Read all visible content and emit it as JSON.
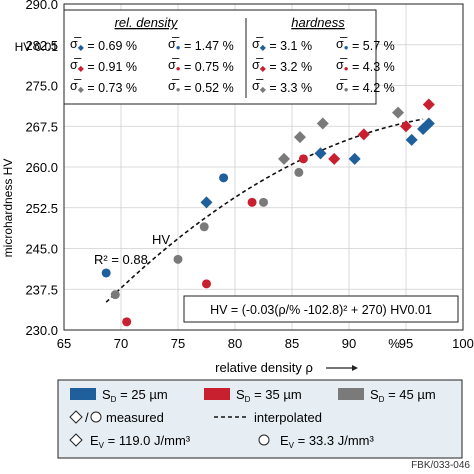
{
  "chart_data": {
    "type": "scatter",
    "xlabel": "relative density ρ",
    "ylabel_visible": "microhardness HV",
    "unit_percent": "%",
    "xlim": [
      65,
      100
    ],
    "ylim": [
      230.0,
      290.0
    ],
    "xticks": [
      "65",
      "70",
      "75",
      "80",
      "85",
      "90",
      "95",
      "100"
    ],
    "yticks": [
      "230.0",
      "237.5",
      "245.0",
      "252.5",
      "260.0",
      "267.5",
      "275.0",
      "282.5",
      "290.0"
    ],
    "hv_tick_label": "HV 0.01",
    "grid": true,
    "colors": {
      "blue": "#1f5f9b",
      "red": "#c8202f",
      "gray": "#7a7a7a"
    },
    "series": [
      {
        "name": "S_D = 25 µm, E_V = 119.0 J/mm³",
        "color": "blue",
        "marker": "diamond",
        "points": [
          [
            77.5,
            253.5
          ],
          [
            87.5,
            262.5
          ],
          [
            90.5,
            261.5
          ],
          [
            95.5,
            265.0
          ],
          [
            96.5,
            267.0
          ],
          [
            97.0,
            268.0
          ]
        ]
      },
      {
        "name": "S_D = 25 µm, E_V = 33.3 J/mm³",
        "color": "blue",
        "marker": "circle",
        "points": [
          [
            68.7,
            240.5
          ],
          [
            79.0,
            258.0
          ]
        ]
      },
      {
        "name": "S_D = 35 µm, E_V = 119.0 J/mm³",
        "color": "red",
        "marker": "diamond",
        "points": [
          [
            88.7,
            261.5
          ],
          [
            91.3,
            266.0
          ],
          [
            95.0,
            267.5
          ],
          [
            97.0,
            271.5
          ]
        ]
      },
      {
        "name": "S_D = 35 µm, E_V = 33.3 J/mm³",
        "color": "red",
        "marker": "circle",
        "points": [
          [
            70.5,
            231.5
          ],
          [
            77.5,
            238.5
          ],
          [
            81.5,
            253.5
          ],
          [
            86.0,
            261.5
          ]
        ]
      },
      {
        "name": "S_D = 45 µm, E_V = 119.0 J/mm³",
        "color": "gray",
        "marker": "diamond",
        "points": [
          [
            84.3,
            261.5
          ],
          [
            85.7,
            265.5
          ],
          [
            87.7,
            268.0
          ],
          [
            94.3,
            270.0
          ]
        ]
      },
      {
        "name": "S_D = 45 µm, E_V = 33.3 J/mm³",
        "color": "gray",
        "marker": "circle",
        "points": [
          [
            69.5,
            236.5
          ],
          [
            75.0,
            243.0
          ],
          [
            77.3,
            249.0
          ],
          [
            82.5,
            253.5
          ],
          [
            85.6,
            259.0
          ]
        ]
      }
    ],
    "fit_curve": {
      "a": -0.03,
      "x0": 102.8,
      "c": 270,
      "xrange": [
        68.7,
        96.5
      ]
    },
    "annotations": {
      "r2": "R² = 0.88",
      "hv": "HV",
      "formula": "HV = (-0.03(ρ/% -102.8)² + 270) HV0.01"
    },
    "stats_box": {
      "rel_density_header": "rel. density",
      "hardness_header": "hardness",
      "rel_density": [
        [
          "σ̅◆ = 0.69 %",
          "σ̅● = 1.47 %"
        ],
        [
          "σ̅◆ = 0.91 %",
          "σ̅● = 0.75 %"
        ],
        [
          "σ̅◆ = 0.73 %",
          "σ̅● = 0.52 %"
        ]
      ],
      "hardness": [
        [
          "σ̅◆ = 3.1 %",
          "σ̅● = 5.7 %"
        ],
        [
          "σ̅◆ = 3.2 %",
          "σ̅● = 4.3 %"
        ],
        [
          "σ̅◆ = 3.3 %",
          "σ̅● = 4.2 %"
        ]
      ],
      "row_colors": [
        "blue",
        "red",
        "gray"
      ]
    },
    "legend": {
      "sizes": [
        "S_D = 25 µm",
        "S_D = 35 µm",
        "S_D = 45 µm"
      ],
      "measured": "measured",
      "interpolated": "interpolated",
      "ev_high": "E_V = 119.0 J/mm³",
      "ev_low": "E_V = 33.3 J/mm³"
    },
    "footer": "FBK/033-046"
  }
}
